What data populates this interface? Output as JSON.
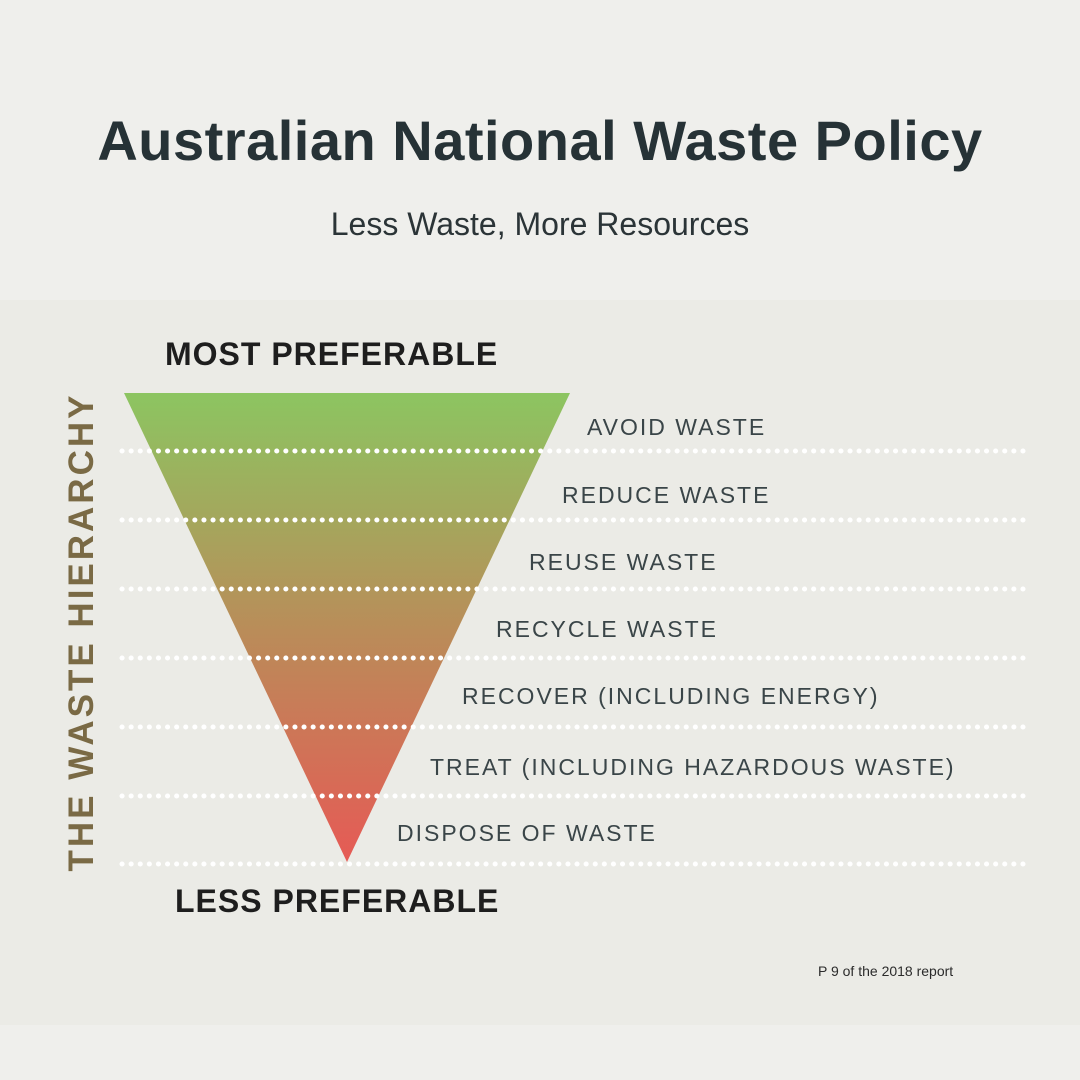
{
  "header": {
    "title": "Australian National Waste Policy",
    "subtitle": "Less Waste, More Resources"
  },
  "hierarchy": {
    "vertical_label": "THE WASTE HIERARCHY",
    "top_label": "MOST PREFERABLE",
    "bottom_label": "LESS PREFERABLE",
    "levels": [
      {
        "label": "AVOID WASTE"
      },
      {
        "label": "REDUCE WASTE"
      },
      {
        "label": "REUSE WASTE"
      },
      {
        "label": "RECYCLE WASTE"
      },
      {
        "label": "RECOVER (INCLUDING ENERGY)"
      },
      {
        "label": "TREAT (INCLUDING HAZARDOUS WASTE)"
      },
      {
        "label": "DISPOSE OF WASTE"
      }
    ],
    "gradient": {
      "top": "#8cc561",
      "middle": "#b98d59",
      "bottom": "#e65a55"
    }
  },
  "footnote": "P 9 of the 2018 report"
}
